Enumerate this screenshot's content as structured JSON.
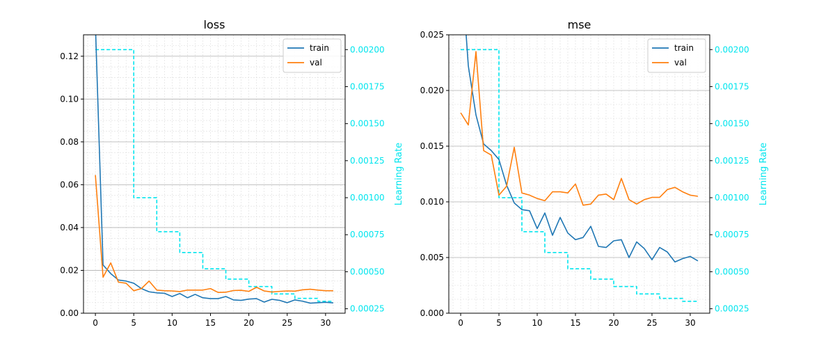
{
  "chart_data": [
    {
      "type": "line",
      "title": "loss",
      "xlabel": "",
      "ylabel": "",
      "y2label": "Learning Rate",
      "xlim": [
        -1.55,
        32.55
      ],
      "ylim": [
        0,
        0.13
      ],
      "y2lim": [
        0.00022,
        0.0021
      ],
      "xticks": [
        0,
        5,
        10,
        15,
        20,
        25,
        30
      ],
      "yticks": [
        0,
        0.02,
        0.04,
        0.06,
        0.08,
        0.1,
        0.12
      ],
      "ytick_labels": [
        "0.00",
        "0.02",
        "0.04",
        "0.06",
        "0.08",
        "0.10",
        "0.12"
      ],
      "y2ticks": [
        0.00025,
        0.0005,
        0.00075,
        0.001,
        0.00125,
        0.0015,
        0.00175,
        0.002
      ],
      "y2tick_labels": [
        "0.00025",
        "0.00050",
        "0.00075",
        "0.00100",
        "0.00125",
        "0.00150",
        "0.00175",
        "0.00200"
      ],
      "grid": true,
      "legend_position": "top-right",
      "x": [
        0,
        1,
        2,
        3,
        4,
        5,
        6,
        7,
        8,
        9,
        10,
        11,
        12,
        13,
        14,
        15,
        16,
        17,
        18,
        19,
        20,
        21,
        22,
        23,
        24,
        25,
        26,
        27,
        28,
        29,
        30,
        31
      ],
      "series": [
        {
          "name": "train",
          "color": "#1f77b4",
          "axis": "left",
          "values": [
            0.135,
            0.0225,
            0.0185,
            0.0155,
            0.015,
            0.014,
            0.0115,
            0.01,
            0.0095,
            0.0093,
            0.0078,
            0.0092,
            0.0072,
            0.0088,
            0.0072,
            0.0068,
            0.0068,
            0.0078,
            0.0062,
            0.006,
            0.0066,
            0.0068,
            0.0052,
            0.0065,
            0.006,
            0.0049,
            0.0062,
            0.0056,
            0.0047,
            0.0049,
            0.0051,
            0.0048
          ]
        },
        {
          "name": "val",
          "color": "#ff7f0e",
          "axis": "left",
          "values": [
            0.0645,
            0.0168,
            0.0235,
            0.0145,
            0.014,
            0.0105,
            0.0115,
            0.015,
            0.0108,
            0.0105,
            0.0104,
            0.0101,
            0.0108,
            0.0108,
            0.0108,
            0.0115,
            0.0097,
            0.0098,
            0.0106,
            0.0107,
            0.0102,
            0.0121,
            0.0104,
            0.0099,
            0.0102,
            0.0104,
            0.0103,
            0.0109,
            0.0112,
            0.0108,
            0.0105,
            0.0105
          ]
        },
        {
          "name": "",
          "color": "#00e5ee",
          "axis": "right",
          "dashed": true,
          "step": true,
          "values": [
            0.002,
            0.002,
            0.002,
            0.002,
            0.002,
            0.001,
            0.001,
            0.001,
            0.00077,
            0.00077,
            0.00077,
            0.00063,
            0.00063,
            0.00063,
            0.00052,
            0.00052,
            0.00052,
            0.00045,
            0.00045,
            0.00045,
            0.0004,
            0.0004,
            0.0004,
            0.00035,
            0.00035,
            0.00035,
            0.00032,
            0.00032,
            0.00032,
            0.0003,
            0.0003,
            0.0003
          ]
        }
      ]
    },
    {
      "type": "line",
      "title": "mse",
      "xlabel": "",
      "ylabel": "",
      "y2label": "Learning Rate",
      "xlim": [
        -1.55,
        32.55
      ],
      "ylim": [
        0,
        0.025
      ],
      "y2lim": [
        0.00022,
        0.0021
      ],
      "xticks": [
        0,
        5,
        10,
        15,
        20,
        25,
        30
      ],
      "yticks": [
        0,
        0.005,
        0.01,
        0.015,
        0.02,
        0.025
      ],
      "ytick_labels": [
        "0.000",
        "0.005",
        "0.010",
        "0.015",
        "0.020",
        "0.025"
      ],
      "y2ticks": [
        0.00025,
        0.0005,
        0.00075,
        0.001,
        0.00125,
        0.0015,
        0.00175,
        0.002
      ],
      "y2tick_labels": [
        "0.00025",
        "0.00050",
        "0.00075",
        "0.00100",
        "0.00125",
        "0.00150",
        "0.00175",
        "0.00200"
      ],
      "grid": true,
      "legend_position": "top-right",
      "x": [
        0,
        1,
        2,
        3,
        4,
        5,
        6,
        7,
        8,
        9,
        10,
        11,
        12,
        13,
        14,
        15,
        16,
        17,
        18,
        19,
        20,
        21,
        22,
        23,
        24,
        25,
        26,
        27,
        28,
        29,
        30,
        31
      ],
      "series": [
        {
          "name": "train",
          "color": "#1f77b4",
          "axis": "left",
          "values": [
            0.032,
            0.0222,
            0.0178,
            0.0152,
            0.0146,
            0.0138,
            0.0115,
            0.0099,
            0.0093,
            0.0092,
            0.0076,
            0.009,
            0.007,
            0.0086,
            0.0072,
            0.0066,
            0.0068,
            0.0078,
            0.006,
            0.0059,
            0.0065,
            0.0066,
            0.005,
            0.0064,
            0.0058,
            0.0048,
            0.0059,
            0.0055,
            0.0046,
            0.0049,
            0.0051,
            0.0047
          ]
        },
        {
          "name": "val",
          "color": "#ff7f0e",
          "axis": "left",
          "values": [
            0.018,
            0.0169,
            0.0235,
            0.0146,
            0.0142,
            0.0106,
            0.0114,
            0.0149,
            0.0108,
            0.0106,
            0.0103,
            0.0101,
            0.0109,
            0.0109,
            0.0108,
            0.0116,
            0.0097,
            0.0098,
            0.0106,
            0.0107,
            0.0102,
            0.0121,
            0.0102,
            0.0098,
            0.0102,
            0.0104,
            0.0104,
            0.0111,
            0.0113,
            0.0109,
            0.0106,
            0.0105
          ]
        },
        {
          "name": "",
          "color": "#00e5ee",
          "axis": "right",
          "dashed": true,
          "step": true,
          "values": [
            0.002,
            0.002,
            0.002,
            0.002,
            0.002,
            0.001,
            0.001,
            0.001,
            0.00077,
            0.00077,
            0.00077,
            0.00063,
            0.00063,
            0.00063,
            0.00052,
            0.00052,
            0.00052,
            0.00045,
            0.00045,
            0.00045,
            0.0004,
            0.0004,
            0.0004,
            0.00035,
            0.00035,
            0.00035,
            0.00032,
            0.00032,
            0.00032,
            0.0003,
            0.0003,
            0.0003
          ]
        }
      ]
    }
  ]
}
